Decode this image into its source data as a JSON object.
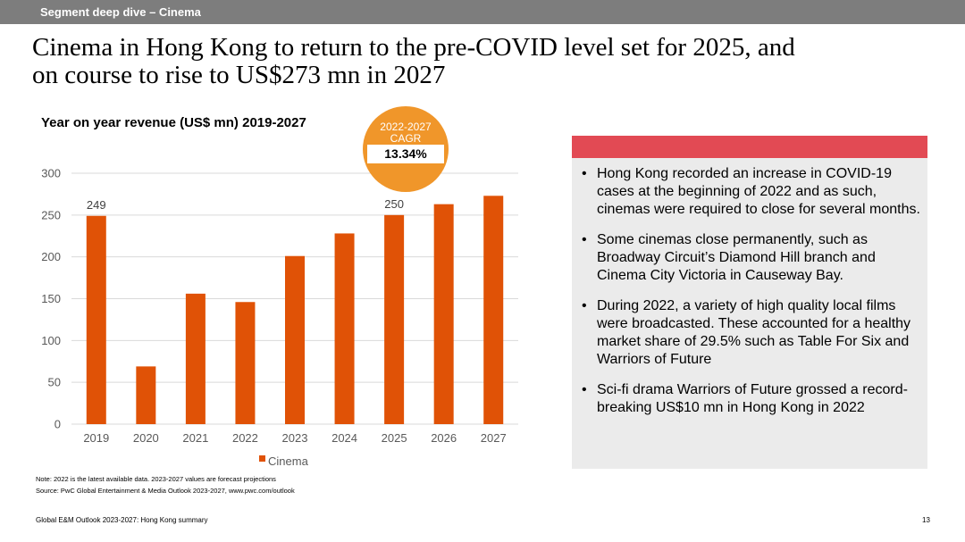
{
  "header": {
    "section": "Segment deep dive – Cinema"
  },
  "headline": {
    "line1": "Cinema in Hong Kong to return to the pre-COVID level set for 2025, and",
    "line2": "on course to rise to US$273 mn in 2027"
  },
  "badge": {
    "line1": "2022-2027",
    "line2": "CAGR",
    "value": "13.34%",
    "color": "#f0962a"
  },
  "chart_data": {
    "type": "bar",
    "title": "Year on year revenue (US$ mn) 2019-2027",
    "categories": [
      "2019",
      "2020",
      "2021",
      "2022",
      "2023",
      "2024",
      "2025",
      "2026",
      "2027"
    ],
    "series": [
      {
        "name": "Cinema",
        "color": "#e05206",
        "values": [
          249,
          69,
          156,
          146,
          201,
          228,
          250,
          263,
          273
        ]
      }
    ],
    "data_labels": [
      {
        "category": "2019",
        "text": "249"
      },
      {
        "category": "2025",
        "text": "250"
      }
    ],
    "ylim": [
      0,
      300
    ],
    "yticks": [
      0,
      50,
      100,
      150,
      200,
      250,
      300
    ],
    "grid": true,
    "legend": "bottom"
  },
  "notes": {
    "line1": "Note: 2022 is the latest available data. 2023-2027 values are forecast projections",
    "line2": "Source: PwC Global Entertainment & Media Outlook 2023-2027, www.pwc.com/outlook"
  },
  "panel": {
    "accent_color": "#e24a54",
    "bullets": [
      "Hong Kong recorded an increase in COVID-19 cases at the beginning of 2022 and as such, cinemas were required to close for several months.",
      "Some cinemas close permanently, such as Broadway Circuit’s Diamond Hill branch and Cinema City Victoria in Causeway Bay.",
      "During 2022, a variety of high quality local films were broadcasted. These accounted for a healthy market share of 29.5% such as Table For Six and Warriors of Future",
      "Sci-fi drama Warriors of Future grossed a record-breaking US$10 mn in Hong Kong in 2022"
    ]
  },
  "footer": {
    "left": "Global E&M Outlook 2023-2027: Hong Kong summary",
    "page": "13"
  }
}
